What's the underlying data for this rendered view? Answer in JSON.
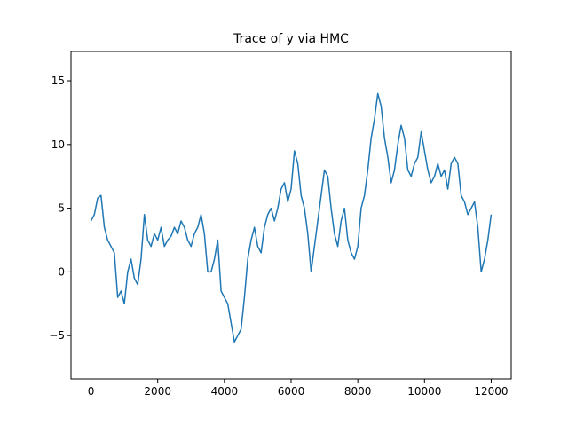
{
  "chart_data": {
    "type": "line",
    "title": "Trace of y via HMC",
    "xlabel": "",
    "ylabel": "",
    "xlim": [
      -600,
      12600
    ],
    "ylim": [
      -8.4,
      17.3
    ],
    "xticks": [
      0,
      2000,
      4000,
      6000,
      8000,
      10000,
      12000
    ],
    "xtick_labels": [
      "0",
      "2000",
      "4000",
      "6000",
      "8000",
      "10000",
      "12000"
    ],
    "yticks": [
      -5,
      0,
      5,
      10,
      15
    ],
    "ytick_labels": [
      "−5",
      "0",
      "5",
      "10",
      "15"
    ],
    "grid": false,
    "color": "#1f77b4",
    "series": [
      {
        "x": [
          0,
          100,
          200,
          300,
          400,
          500,
          600,
          700,
          800,
          900,
          1000,
          1100,
          1200,
          1300,
          1400,
          1500,
          1600,
          1700,
          1800,
          1900,
          2000,
          2100,
          2200,
          2300,
          2400,
          2500,
          2600,
          2700,
          2800,
          2900,
          3000,
          3100,
          3200,
          3300,
          3400,
          3500,
          3600,
          3700,
          3800,
          3900,
          4000,
          4100,
          4200,
          4300,
          4400,
          4500,
          4600,
          4700,
          4800,
          4900,
          5000,
          5100,
          5200,
          5300,
          5400,
          5500,
          5600,
          5700,
          5800,
          5900,
          6000,
          6100,
          6200,
          6300,
          6400,
          6500,
          6600,
          6700,
          6800,
          6900,
          7000,
          7100,
          7200,
          7300,
          7400,
          7500,
          7600,
          7700,
          7800,
          7900,
          8000,
          8100,
          8200,
          8300,
          8400,
          8500,
          8600,
          8700,
          8800,
          8900,
          9000,
          9100,
          9200,
          9300,
          9400,
          9500,
          9600,
          9700,
          9800,
          9900,
          10000,
          10100,
          10200,
          10300,
          10400,
          10500,
          10600,
          10700,
          10800,
          10900,
          11000,
          11100,
          11200,
          11300,
          11400,
          11500,
          11600,
          11700,
          11800,
          11900,
          12000
        ],
        "y": [
          4.0,
          4.5,
          5.8,
          6.0,
          3.5,
          2.5,
          2.0,
          1.5,
          -2.0,
          -1.5,
          -2.5,
          0.0,
          1.0,
          -0.5,
          -1.0,
          1.0,
          4.5,
          2.5,
          2.0,
          3.0,
          2.5,
          3.5,
          2.0,
          2.5,
          2.8,
          3.5,
          3.0,
          4.0,
          3.5,
          2.5,
          2.0,
          3.0,
          3.5,
          4.5,
          3.0,
          0.0,
          0.0,
          1.0,
          2.5,
          -1.5,
          -2.0,
          -2.5,
          -4.0,
          -5.5,
          -5.0,
          -4.5,
          -2.0,
          1.0,
          2.5,
          3.5,
          2.0,
          1.5,
          3.5,
          4.5,
          5.0,
          4.0,
          5.0,
          6.5,
          7.0,
          5.5,
          6.5,
          9.5,
          8.5,
          6.0,
          5.0,
          3.0,
          0.0,
          2.0,
          4.0,
          6.0,
          8.0,
          7.5,
          5.0,
          3.0,
          2.0,
          4.0,
          5.0,
          2.5,
          1.5,
          1.0,
          2.0,
          5.0,
          6.0,
          8.0,
          10.5,
          12.0,
          14.0,
          13.0,
          10.5,
          9.0,
          7.0,
          8.0,
          10.0,
          11.5,
          10.5,
          8.0,
          7.5,
          8.5,
          9.0,
          11.0,
          9.5,
          8.0,
          7.0,
          7.5,
          8.5,
          7.5,
          8.0,
          6.5,
          8.5,
          9.0,
          8.5,
          6.0,
          5.5,
          4.5,
          5.0,
          5.5,
          3.5,
          0.0,
          1.0,
          2.5,
          4.5
        ]
      }
    ]
  }
}
